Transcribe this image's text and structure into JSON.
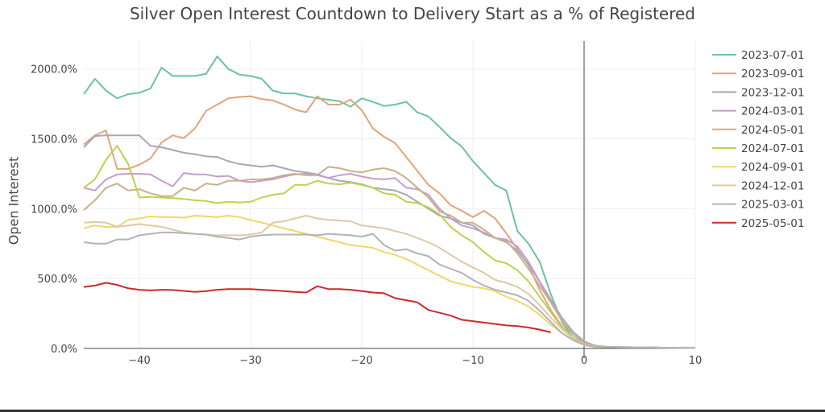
{
  "chart_data": {
    "type": "line",
    "title": "Silver Open Interest Countdown to Delivery Start as a % of Registered",
    "xlabel": "",
    "ylabel": "Open Interest",
    "xlim": [
      -45,
      10
    ],
    "ylim": [
      0,
      2200
    ],
    "x_ticks": [
      -40,
      -30,
      -20,
      -10,
      0,
      10
    ],
    "x_tick_labels": [
      "−40",
      "−30",
      "−20",
      "−10",
      "0",
      "10"
    ],
    "y_ticks": [
      0,
      500,
      1000,
      1500,
      2000
    ],
    "y_tick_labels": [
      "0.0%",
      "500.0%",
      "1000.0%",
      "1500.0%",
      "2000.0%"
    ],
    "grid": true,
    "legend_position": "right",
    "x_start": -45,
    "series": [
      {
        "name": "2023-07-01",
        "color": "#6cc2a0",
        "values": [
          1820,
          1930,
          1845,
          1790,
          1820,
          1830,
          1860,
          2010,
          1950,
          1950,
          1950,
          1965,
          2090,
          2000,
          1960,
          1950,
          1930,
          1845,
          1825,
          1825,
          1805,
          1790,
          1780,
          1770,
          1730,
          1790,
          1765,
          1735,
          1745,
          1765,
          1690,
          1660,
          1585,
          1505,
          1445,
          1340,
          1255,
          1170,
          1130,
          840,
          750,
          620,
          390,
          190,
          75,
          45,
          20,
          12,
          10,
          9,
          8,
          7,
          6,
          6,
          5,
          5
        ]
      },
      {
        "name": "2023-09-01",
        "color": "#e0a47e",
        "values": [
          1460,
          1525,
          1560,
          1285,
          1285,
          1315,
          1360,
          1475,
          1525,
          1505,
          1575,
          1700,
          1745,
          1790,
          1800,
          1805,
          1785,
          1775,
          1745,
          1710,
          1690,
          1805,
          1745,
          1745,
          1780,
          1705,
          1575,
          1515,
          1470,
          1370,
          1270,
          1170,
          1110,
          1025,
          985,
          940,
          985,
          930,
          825,
          710,
          595,
          420,
          275,
          160,
          75,
          30,
          15,
          10,
          9,
          8,
          7,
          7,
          6,
          6,
          5,
          5
        ]
      },
      {
        "name": "2023-12-01",
        "color": "#a9a6b8",
        "values": [
          1440,
          1520,
          1525,
          1525,
          1525,
          1525,
          1450,
          1440,
          1420,
          1400,
          1390,
          1375,
          1370,
          1340,
          1320,
          1310,
          1300,
          1310,
          1290,
          1270,
          1260,
          1245,
          1220,
          1200,
          1190,
          1175,
          1150,
          1140,
          1130,
          1100,
          1050,
          1000,
          950,
          930,
          900,
          880,
          820,
          790,
          760,
          700,
          600,
          480,
          350,
          220,
          120,
          50,
          20,
          12,
          10,
          9,
          8,
          7,
          6,
          6,
          5,
          5
        ]
      },
      {
        "name": "2024-03-01",
        "color": "#c49ed0",
        "values": [
          1150,
          1130,
          1210,
          1245,
          1250,
          1250,
          1245,
          1200,
          1160,
          1255,
          1245,
          1245,
          1230,
          1235,
          1200,
          1190,
          1200,
          1210,
          1230,
          1245,
          1250,
          1240,
          1220,
          1240,
          1250,
          1230,
          1215,
          1210,
          1220,
          1150,
          1140,
          1100,
          1000,
          930,
          880,
          860,
          830,
          790,
          780,
          730,
          620,
          480,
          330,
          200,
          100,
          40,
          18,
          12,
          10,
          9,
          8,
          7,
          6,
          6,
          5,
          5
        ]
      },
      {
        "name": "2024-05-01",
        "color": "#c9b08c",
        "values": [
          990,
          1060,
          1150,
          1180,
          1130,
          1140,
          1110,
          1090,
          1090,
          1150,
          1130,
          1180,
          1170,
          1200,
          1200,
          1210,
          1210,
          1220,
          1240,
          1250,
          1240,
          1240,
          1300,
          1290,
          1270,
          1260,
          1280,
          1290,
          1270,
          1220,
          1150,
          1080,
          980,
          950,
          900,
          900,
          850,
          790,
          770,
          680,
          570,
          450,
          330,
          200,
          100,
          40,
          18,
          12,
          10,
          9,
          8,
          7,
          6,
          6,
          5,
          5
        ]
      },
      {
        "name": "2024-07-01",
        "color": "#bfd150",
        "values": [
          1150,
          1210,
          1350,
          1450,
          1320,
          1080,
          1085,
          1080,
          1075,
          1070,
          1060,
          1055,
          1040,
          1050,
          1045,
          1050,
          1080,
          1100,
          1110,
          1170,
          1170,
          1200,
          1180,
          1175,
          1185,
          1170,
          1150,
          1110,
          1100,
          1050,
          1040,
          1010,
          960,
          870,
          810,
          760,
          690,
          630,
          610,
          560,
          480,
          370,
          260,
          150,
          80,
          30,
          15,
          10,
          9,
          8,
          7,
          6,
          6,
          5,
          5,
          5
        ]
      },
      {
        "name": "2024-09-01",
        "color": "#f0d66c",
        "values": [
          860,
          880,
          870,
          870,
          920,
          930,
          945,
          940,
          940,
          935,
          950,
          945,
          940,
          950,
          940,
          920,
          900,
          880,
          860,
          840,
          820,
          800,
          780,
          760,
          740,
          730,
          720,
          690,
          670,
          640,
          600,
          560,
          520,
          480,
          460,
          440,
          430,
          410,
          370,
          340,
          300,
          240,
          170,
          110,
          60,
          25,
          12,
          9,
          8,
          7,
          6,
          6,
          5,
          5,
          5,
          4
        ]
      },
      {
        "name": "2024-12-01",
        "color": "#dccaa6",
        "values": [
          900,
          905,
          900,
          870,
          880,
          890,
          880,
          870,
          850,
          830,
          820,
          815,
          810,
          810,
          810,
          815,
          830,
          900,
          910,
          930,
          950,
          930,
          920,
          915,
          910,
          880,
          870,
          860,
          840,
          820,
          790,
          760,
          720,
          670,
          620,
          580,
          540,
          490,
          470,
          440,
          390,
          310,
          220,
          140,
          70,
          30,
          14,
          10,
          9,
          8,
          7,
          6,
          6,
          5,
          5,
          5
        ]
      },
      {
        "name": "2025-03-01",
        "color": "#b3b3b3",
        "values": [
          760,
          750,
          750,
          780,
          780,
          810,
          820,
          830,
          830,
          825,
          820,
          815,
          800,
          790,
          780,
          800,
          810,
          815,
          815,
          815,
          815,
          810,
          820,
          815,
          810,
          800,
          820,
          740,
          700,
          710,
          680,
          660,
          600,
          570,
          540,
          490,
          450,
          420,
          400,
          380,
          340,
          270,
          190,
          110,
          60,
          25,
          12,
          9,
          8,
          7,
          6,
          6,
          5,
          5,
          5,
          4
        ]
      },
      {
        "name": "2025-05-01",
        "color": "#cc2a2a",
        "values": [
          440,
          450,
          470,
          455,
          430,
          420,
          415,
          420,
          418,
          412,
          405,
          410,
          420,
          425,
          425,
          425,
          420,
          415,
          410,
          405,
          400,
          445,
          425,
          425,
          420,
          410,
          400,
          395,
          360,
          345,
          330,
          275,
          255,
          235,
          205,
          195,
          185,
          175,
          165,
          160,
          150,
          135,
          115
        ]
      }
    ]
  }
}
